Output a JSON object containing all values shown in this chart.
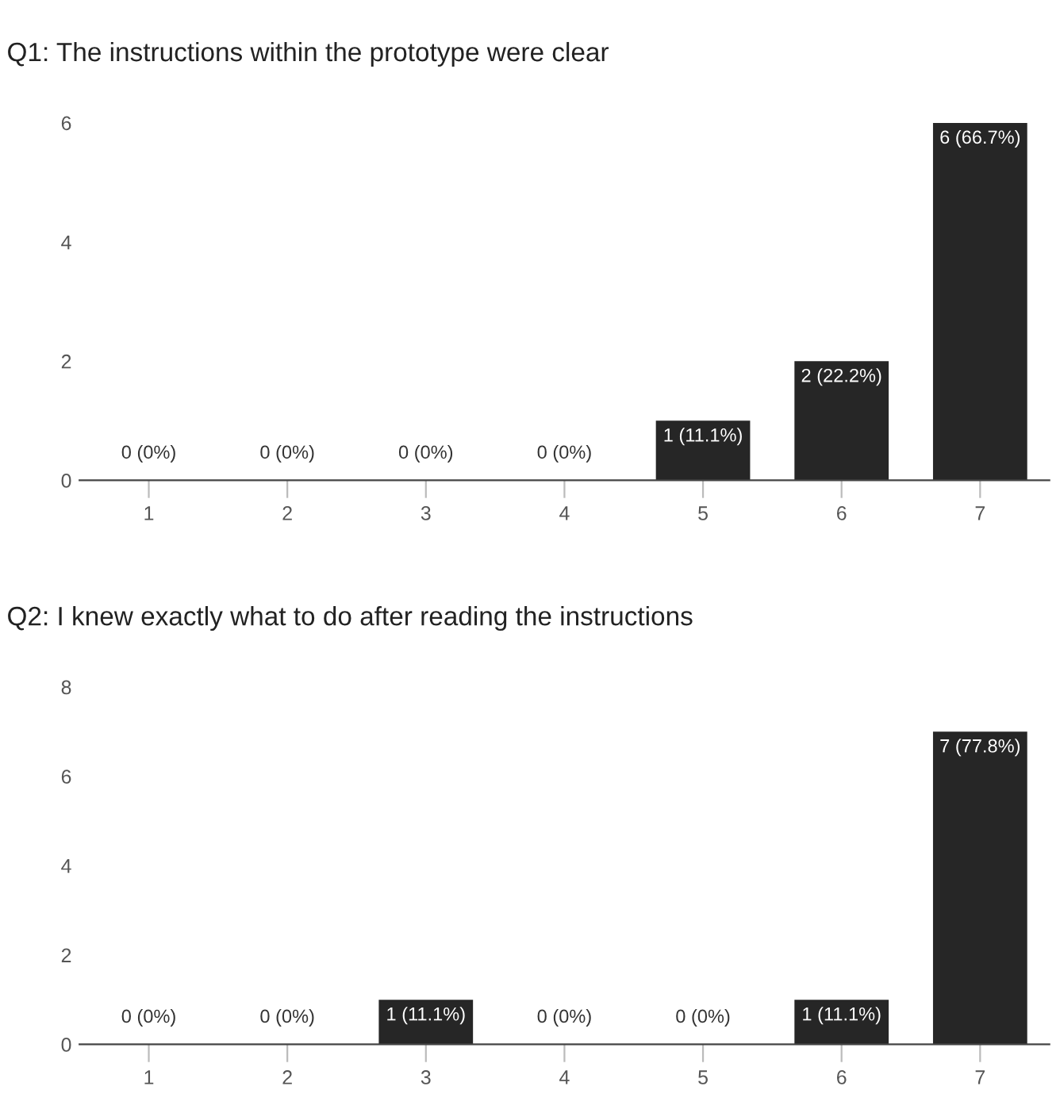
{
  "chart_data": [
    {
      "type": "bar",
      "title": "Q1: The instructions within the prototype were clear",
      "categories": [
        "1",
        "2",
        "3",
        "4",
        "5",
        "6",
        "7"
      ],
      "values": [
        0,
        0,
        0,
        0,
        1,
        2,
        6
      ],
      "value_labels": [
        "0 (0%)",
        "0 (0%)",
        "0 (0%)",
        "0 (0%)",
        "1 (11.1%)",
        "2 (22.2%)",
        "6 (66.7%)"
      ],
      "color": "#262626",
      "ylim": [
        0,
        6
      ],
      "yticks": [
        0,
        2,
        4,
        6
      ],
      "grid": false,
      "legend": false
    },
    {
      "type": "bar",
      "title": "Q2: I knew exactly what to do after reading the instructions",
      "categories": [
        "1",
        "2",
        "3",
        "4",
        "5",
        "6",
        "7"
      ],
      "values": [
        0,
        0,
        1,
        0,
        0,
        1,
        7
      ],
      "value_labels": [
        "0 (0%)",
        "0 (0%)",
        "1 (11.1%)",
        "0 (0%)",
        "0 (0%)",
        "1 (11.1%)",
        "7 (77.8%)"
      ],
      "color": "#262626",
      "ylim": [
        0,
        8
      ],
      "yticks": [
        0,
        2,
        4,
        6,
        8
      ],
      "grid": false,
      "legend": false
    }
  ]
}
